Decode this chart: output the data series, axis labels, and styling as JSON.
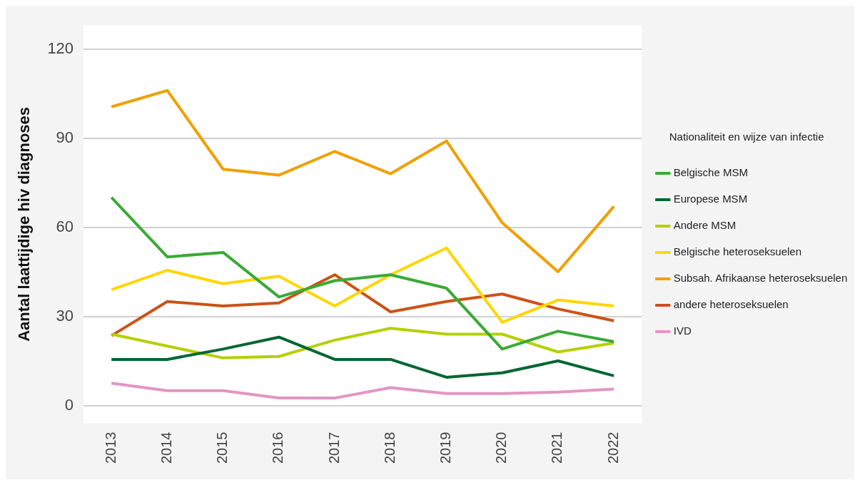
{
  "chart_data": {
    "type": "line",
    "ylabel": "Aantal laattijdige hiv diagnoses",
    "legend_title": "Nationaliteit en wijze van infectie",
    "legend": "right",
    "grid": "y",
    "marker": "none",
    "line_style": "solid",
    "categories": [
      "2013",
      "2014",
      "2015",
      "2016",
      "2017",
      "2018",
      "2019",
      "2020",
      "2021",
      "2022"
    ],
    "ylim": [
      -6,
      128
    ],
    "yticks": [
      0,
      30,
      60,
      90,
      120
    ],
    "series": [
      {
        "name": "Belgische MSM",
        "color": "#3aaa35",
        "values": [
          70,
          50,
          51.5,
          36.5,
          42,
          44,
          39.5,
          19,
          25,
          21.5
        ]
      },
      {
        "name": "Europese MSM",
        "color": "#006633",
        "values": [
          15.5,
          15.5,
          19,
          23,
          15.5,
          15.5,
          9.5,
          11,
          15,
          10
        ]
      },
      {
        "name": "Andere MSM",
        "color": "#b5d000",
        "values": [
          24,
          20,
          16,
          16.5,
          22,
          26,
          24,
          24,
          18,
          21
        ]
      },
      {
        "name": "Belgische heteroseksuelen",
        "color": "#ffd600",
        "values": [
          39,
          45.5,
          41,
          43.5,
          33.5,
          44,
          53,
          28,
          35.5,
          33.5
        ]
      },
      {
        "name": "Subsah. Afrikaanse heteroseksuelen",
        "color": "#f0a000",
        "values": [
          100.5,
          106,
          79.5,
          77.5,
          85.5,
          78,
          89,
          61.5,
          45,
          67
        ]
      },
      {
        "name": "andere heteroseksuelen",
        "color": "#cc5216",
        "values": [
          23.5,
          35,
          33.5,
          34.5,
          44,
          31.5,
          35,
          37.5,
          32.5,
          28.5
        ]
      },
      {
        "name": "IVD",
        "color": "#e394c4",
        "values": [
          7.5,
          5,
          5,
          2.5,
          2.5,
          6,
          4,
          4,
          4.5,
          5.5
        ]
      }
    ]
  }
}
